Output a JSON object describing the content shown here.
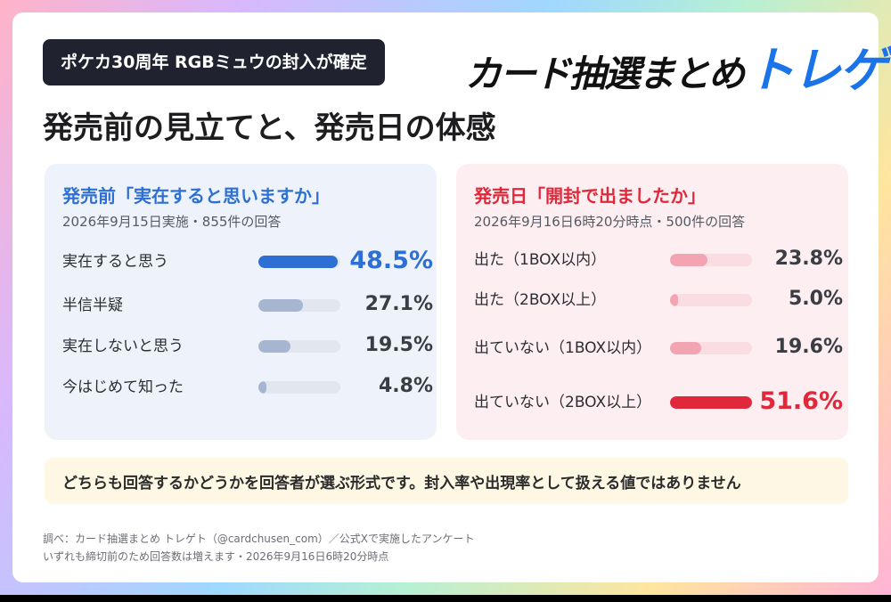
{
  "header": {
    "badge": "ポケカ30周年 RGBミュウの封入が確定",
    "brand_main": "カード抽選まとめ",
    "brand_accent": "トレゲト",
    "headline": "発売前の見立てと、発売日の体感"
  },
  "colors": {
    "left_accent": "#2d6fd2",
    "right_accent": "#e0283a",
    "left_bar_muted": "#a6b5d0",
    "right_bar_muted": "#f2a4b3"
  },
  "chart_data": [
    {
      "type": "bar",
      "title": "発売前「実在すると思いますか」",
      "subtitle": "2026年9月15日実施・855件の回答",
      "categories": [
        "実在すると思う",
        "半信半疑",
        "実在しないと思う",
        "今はじめて知った"
      ],
      "values": [
        48.5,
        27.1,
        19.5,
        4.8
      ],
      "value_labels": [
        "48.5%",
        "27.1%",
        "19.5%",
        "4.8%"
      ],
      "highlight_index": 0,
      "xlim": [
        0,
        50
      ]
    },
    {
      "type": "bar",
      "title": "発売日「開封で出ましたか」",
      "subtitle": "2026年9月16日6時20分時点・500件の回答",
      "categories": [
        "出た（1BOX以内）",
        "出た（2BOX以上）",
        "出ていない（1BOX以内）",
        "出ていない（2BOX以上）"
      ],
      "values": [
        23.8,
        5.0,
        19.6,
        51.6
      ],
      "value_labels": [
        "23.8%",
        "5.0%",
        "19.6%",
        "51.6%"
      ],
      "highlight_index": 3,
      "xlim": [
        0,
        51.6
      ]
    }
  ],
  "note": "どちらも回答するかどうかを回答者が選ぶ形式です。封入率や出現率として扱える値ではありません",
  "footer": {
    "line1": "調べ：カード抽選まとめ トレゲト（@cardchusen_com）／公式Xで実施したアンケート",
    "line2": "いずれも締切前のため回答数は増えます・2026年9月16日6時20分時点"
  }
}
